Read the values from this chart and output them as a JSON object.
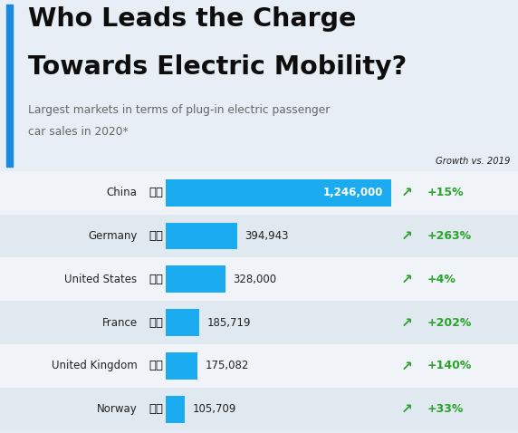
{
  "title_line1": "Who Leads the Charge",
  "title_line2": "Towards Electric Mobility?",
  "subtitle_line1": "Largest markets in terms of plug-in electric passenger",
  "subtitle_line2": "car sales in 2020*",
  "growth_label": "Growth vs. 2019",
  "countries": [
    "China",
    "Germany",
    "United States",
    "France",
    "United Kingdom",
    "Norway"
  ],
  "flags": [
    "🇨🇳",
    "🇩🇪",
    "🇺🇸",
    "🇫🇷",
    "🇬🇧",
    "🇳🇴"
  ],
  "values": [
    1246000,
    394943,
    328000,
    185719,
    175082,
    105709
  ],
  "value_labels": [
    "1,246,000",
    "394,943",
    "328,000",
    "185,719",
    "175,082",
    "105,709"
  ],
  "growth": [
    "+15%",
    "+263%",
    "+4%",
    "+202%",
    "+140%",
    "+33%"
  ],
  "bar_color": "#1aabf0",
  "growth_color": "#28a428",
  "bg_color": "#e8eef5",
  "row_white_color": "#f0f4f9",
  "row_alt_color": "#e0e8f0",
  "title_color": "#0d0d0d",
  "subtitle_color": "#666666",
  "label_color": "#222222",
  "left_accent_color": "#1a8ae0",
  "max_val": 1246000,
  "figsize": [
    5.72,
    4.78
  ],
  "dpi": 100
}
